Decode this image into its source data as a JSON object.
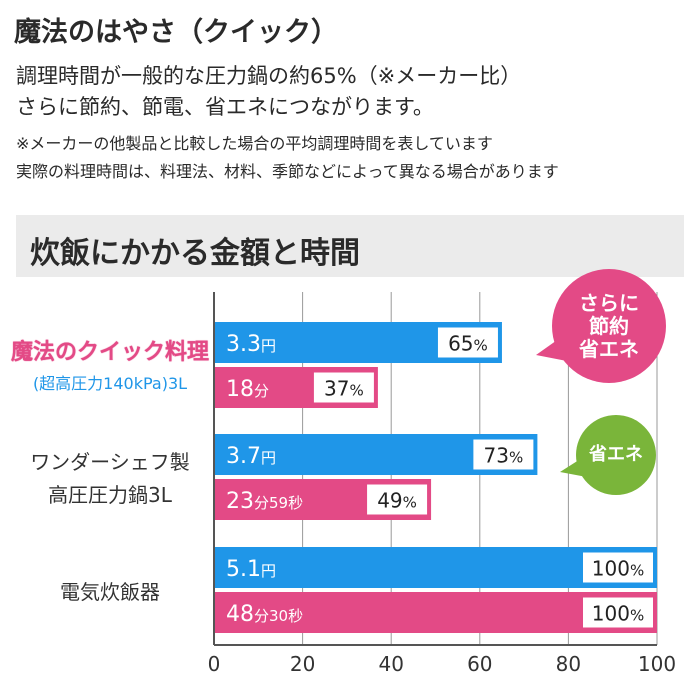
{
  "header": {
    "title": "魔法のはやさ（クイック）",
    "lines": [
      "調理時間が一般的な圧力鍋の約65%（※メーカー比）",
      "さらに節約、節電、省エネにつながります。"
    ],
    "notes": [
      "※メーカーの他製品と比較した場合の平均調理時間を表しています",
      "実際の料理時間は、料理法、材料、季節などによって異なる場合があります"
    ]
  },
  "section": {
    "title": "炊飯にかかる金額と時間"
  },
  "colors": {
    "cost": "#1f96e8",
    "time": "#e34a86",
    "eco_bubble": "#7ab53a",
    "axis": "#555555"
  },
  "chart_data": {
    "type": "bar",
    "orientation": "horizontal",
    "categories": [
      {
        "name": "魔法のクイック料理",
        "sub": "(超高圧力140kPa)3L"
      },
      {
        "name": "ワンダーシェフ製",
        "sub": "高圧圧力鍋3L"
      },
      {
        "name": "電気炊飯器",
        "sub": ""
      }
    ],
    "series": [
      {
        "values": [
          65,
          73,
          100
        ],
        "label_main": [
          "3.3",
          "3.7",
          "5.1"
        ],
        "label_unit": [
          "円",
          "円",
          "円"
        ],
        "label_extra": [
          "",
          "",
          ""
        ],
        "percent_labels": [
          "65%",
          "73%",
          "100%"
        ]
      },
      {
        "values": [
          37,
          49,
          100
        ],
        "label_main": [
          "18",
          "23",
          "48"
        ],
        "label_unit": [
          "分",
          "分",
          "分"
        ],
        "label_extra": [
          "",
          "59秒",
          "30秒"
        ],
        "percent_labels": [
          "37%",
          "49%",
          "100%"
        ]
      }
    ],
    "xlim": [
      0,
      100
    ],
    "xticks": [
      0,
      20,
      40,
      60,
      80,
      100
    ],
    "annotations": [
      {
        "text_lines": [
          "さらに",
          "節約",
          "省エネ"
        ],
        "color": "#e34a86"
      },
      {
        "text_lines": [
          "省エネ"
        ],
        "color": "#7ab53a"
      }
    ]
  }
}
